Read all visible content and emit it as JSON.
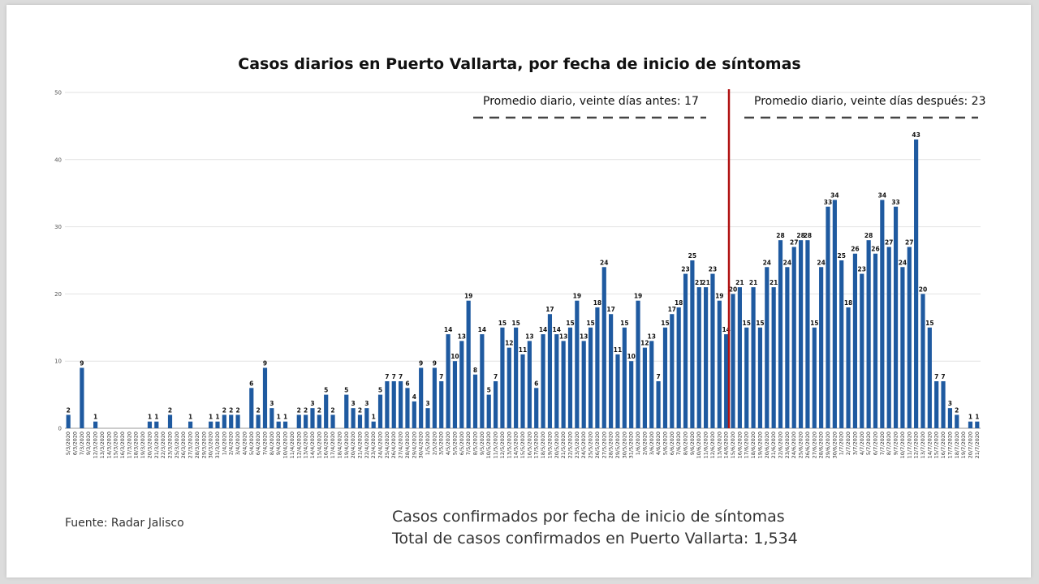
{
  "chart_data": {
    "type": "bar",
    "title": "Casos diarios en Puerto Vallarta, por fecha de inicio de síntomas",
    "xlabel": "",
    "ylabel": "",
    "ylim": [
      0,
      50
    ],
    "yticks": [
      0,
      10,
      20,
      30,
      40,
      50
    ],
    "grid": true,
    "bar_color": "#1f5aa0",
    "marker_color": "#b01010",
    "marker_after_category": "14/6/2020",
    "categories": [
      "5/3/2020",
      "6/3/2020",
      "7/3/2020",
      "9/3/2020",
      "12/3/2020",
      "13/3/2020",
      "14/3/2020",
      "15/3/2020",
      "16/3/2020",
      "17/3/2020",
      "18/3/2020",
      "19/3/2020",
      "20/3/2020",
      "21/3/2020",
      "22/3/2020",
      "23/3/2020",
      "25/3/2020",
      "26/3/2020",
      "27/3/2020",
      "28/3/2020",
      "29/3/2020",
      "30/3/2020",
      "31/3/2020",
      "1/4/2020",
      "2/4/2020",
      "3/4/2020",
      "4/4/2020",
      "5/4/2020",
      "6/4/2020",
      "7/4/2020",
      "8/4/2020",
      "9/4/2020",
      "10/4/2020",
      "11/4/2020",
      "12/4/2020",
      "13/4/2020",
      "14/4/2020",
      "15/4/2020",
      "16/4/2020",
      "17/4/2020",
      "18/4/2020",
      "19/4/2020",
      "20/4/2020",
      "21/4/2020",
      "22/4/2020",
      "23/4/2020",
      "24/4/2020",
      "25/4/2020",
      "26/4/2020",
      "27/4/2020",
      "28/4/2020",
      "29/4/2020",
      "30/4/2020",
      "1/5/2020",
      "2/5/2020",
      "3/5/2020",
      "4/5/2020",
      "5/5/2020",
      "6/5/2020",
      "7/5/2020",
      "8/5/2020",
      "9/5/2020",
      "10/5/2020",
      "11/5/2020",
      "12/5/2020",
      "13/5/2020",
      "14/5/2020",
      "15/5/2020",
      "16/5/2020",
      "17/5/2020",
      "18/5/2020",
      "19/5/2020",
      "20/5/2020",
      "21/5/2020",
      "22/5/2020",
      "23/5/2020",
      "24/5/2020",
      "25/5/2020",
      "26/5/2020",
      "27/5/2020",
      "28/5/2020",
      "29/5/2020",
      "30/5/2020",
      "31/5/2020",
      "1/6/2020",
      "2/6/2020",
      "3/6/2020",
      "4/6/2020",
      "5/6/2020",
      "6/6/2020",
      "7/6/2020",
      "8/6/2020",
      "9/6/2020",
      "10/6/2020",
      "11/6/2020",
      "12/6/2020",
      "13/6/2020",
      "14/6/2020",
      "15/6/2020",
      "16/6/2020",
      "17/6/2020",
      "18/6/2020",
      "19/6/2020",
      "20/6/2020",
      "21/6/2020",
      "22/6/2020",
      "23/6/2020",
      "24/6/2020",
      "25/6/2020",
      "26/6/2020",
      "27/6/2020",
      "28/6/2020",
      "29/6/2020",
      "30/6/2020",
      "1/7/2020",
      "2/7/2020",
      "3/7/2020",
      "4/7/2020",
      "5/7/2020",
      "6/7/2020",
      "7/7/2020",
      "8/7/2020",
      "9/7/2020",
      "10/7/2020",
      "11/7/2020",
      "12/7/2020",
      "13/7/2020",
      "14/7/2020",
      "15/7/2020",
      "16/7/2020",
      "17/7/2020",
      "18/7/2020",
      "19/7/2020",
      "20/7/2020",
      "21/7/2020"
    ],
    "values": [
      2,
      0,
      9,
      0,
      1,
      0,
      0,
      0,
      0,
      0,
      0,
      0,
      1,
      1,
      0,
      2,
      0,
      0,
      1,
      0,
      0,
      1,
      1,
      2,
      2,
      2,
      0,
      6,
      2,
      9,
      3,
      1,
      1,
      0,
      2,
      2,
      3,
      2,
      5,
      2,
      0,
      5,
      3,
      2,
      3,
      1,
      5,
      7,
      7,
      7,
      6,
      4,
      9,
      3,
      9,
      7,
      14,
      10,
      13,
      19,
      8,
      14,
      5,
      7,
      15,
      12,
      15,
      11,
      13,
      6,
      14,
      17,
      14,
      13,
      15,
      19,
      13,
      15,
      18,
      24,
      17,
      11,
      15,
      10,
      19,
      12,
      13,
      7,
      15,
      17,
      18,
      23,
      25,
      21,
      21,
      23,
      19,
      14,
      20,
      21,
      15,
      21,
      15,
      24,
      21,
      28,
      24,
      27,
      28,
      28,
      15,
      24,
      33,
      34,
      25,
      18,
      26,
      23,
      28,
      26,
      34,
      27,
      33,
      24,
      27,
      43,
      20,
      15,
      7,
      7,
      3,
      2,
      0,
      1,
      1
    ],
    "averages": {
      "before_label": "Promedio diario, veinte días antes: 17",
      "after_label": "Promedio diario, veinte días después: 23"
    }
  },
  "footer": {
    "source": "Fuente: Radar Jalisco",
    "note_line1": "Casos confirmados por fecha de inicio de síntomas",
    "note_line2": "Total de casos confirmados en Puerto Vallarta: 1,534"
  }
}
